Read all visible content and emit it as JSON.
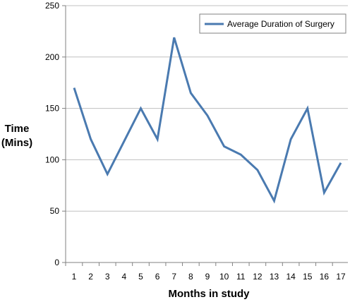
{
  "chart_data": {
    "type": "line",
    "x": [
      1,
      2,
      3,
      4,
      5,
      6,
      7,
      8,
      9,
      10,
      11,
      12,
      13,
      14,
      15,
      16,
      17
    ],
    "series": [
      {
        "name": "Average Duration of Surgery",
        "values": [
          170,
          120,
          86,
          118,
          150,
          120,
          219,
          165,
          143,
          113,
          105,
          90,
          60,
          120,
          150,
          68,
          97
        ],
        "color": "#4a7ab0"
      }
    ],
    "title": "",
    "xlabel": "Months in study",
    "ylabel_line1": "Time",
    "ylabel_line2": "(Mins)",
    "ylim": [
      0,
      250
    ],
    "yticks": [
      0,
      50,
      100,
      150,
      200,
      250
    ],
    "grid": true,
    "legend_position": "top-right"
  }
}
